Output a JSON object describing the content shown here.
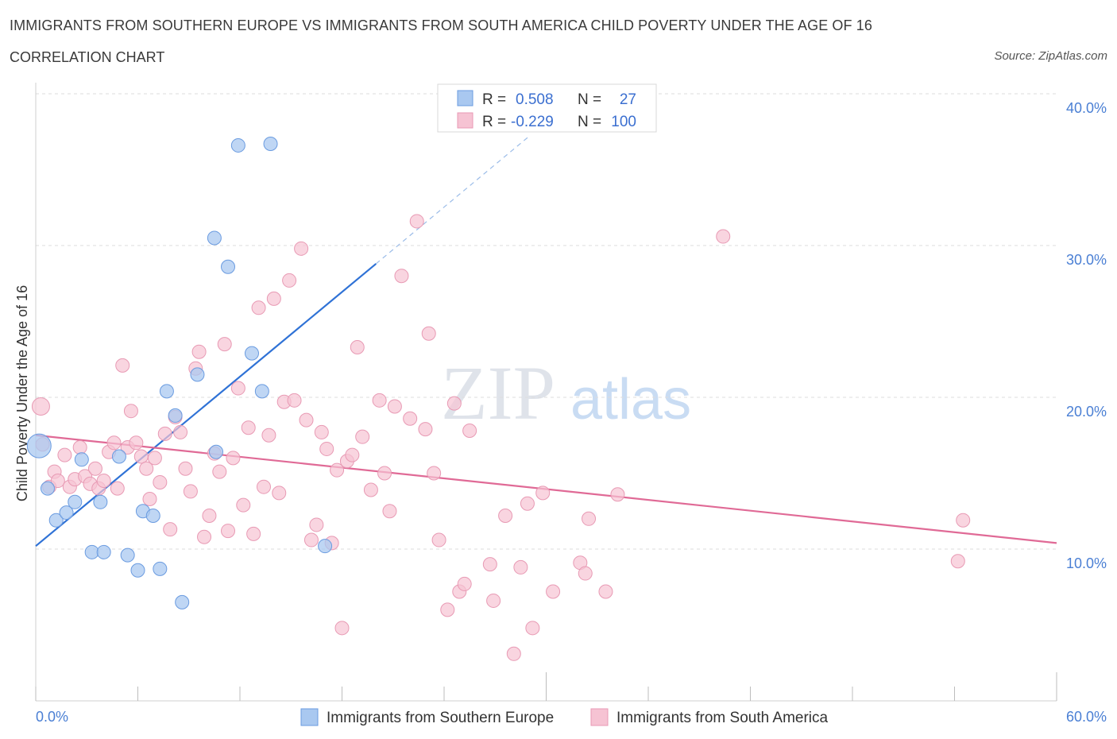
{
  "header": {
    "title": "IMMIGRANTS FROM SOUTHERN EUROPE VS IMMIGRANTS FROM SOUTH AMERICA CHILD POVERTY UNDER THE AGE OF 16",
    "subtitle": "CORRELATION CHART",
    "source": "Source: ZipAtlas.com"
  },
  "watermark": {
    "zip": "ZIP",
    "atlas": "atlas"
  },
  "colors": {
    "blue_fill": "#a9c8f0",
    "blue_stroke": "#6a9be0",
    "blue_line": "#2f72d6",
    "pink_fill": "#f6c3d3",
    "pink_stroke": "#e89ab4",
    "pink_line": "#e06a96",
    "grid": "#dddddd",
    "tick_label": "#4a7fd4"
  },
  "legend": {
    "rows": [
      {
        "r_label": "R =",
        "r_value": "0.508",
        "n_label": "N =",
        "n_value": "27"
      },
      {
        "r_label": "R =",
        "r_value": "-0.229",
        "n_label": "N =",
        "n_value": "100"
      }
    ]
  },
  "chart_data": {
    "type": "scatter",
    "title": "IMMIGRANTS FROM SOUTHERN EUROPE VS IMMIGRANTS FROM SOUTH AMERICA CHILD POVERTY UNDER THE AGE OF 16",
    "xlabel": "",
    "ylabel": "Child Poverty Under the Age of 16",
    "xlim": [
      0,
      60
    ],
    "ylim": [
      0,
      40
    ],
    "y_ticks": [
      10,
      20,
      30,
      40
    ],
    "y_tick_labels": [
      "10.0%",
      "20.0%",
      "30.0%",
      "40.0%"
    ],
    "x_tick_labels": [
      "0.0%",
      "60.0%"
    ],
    "x_minor_ticks": [
      0,
      6,
      12,
      18,
      24,
      30,
      36,
      42,
      48,
      54,
      60
    ],
    "series": [
      {
        "name": "Immigrants from Southern Europe",
        "color": "blue",
        "R": 0.508,
        "N": 27,
        "trend": {
          "x0": 0,
          "y0": 10.2,
          "x1": 20,
          "y1": 28.8,
          "dash_to_x": 29,
          "dash_to_y": 37.2
        },
        "points": [
          [
            0.2,
            16.8
          ],
          [
            0.7,
            14.0
          ],
          [
            1.2,
            11.9
          ],
          [
            1.8,
            12.4
          ],
          [
            2.3,
            13.1
          ],
          [
            2.7,
            15.9
          ],
          [
            3.3,
            9.8
          ],
          [
            4.0,
            9.8
          ],
          [
            3.8,
            13.1
          ],
          [
            4.9,
            16.1
          ],
          [
            5.4,
            9.6
          ],
          [
            6.0,
            8.6
          ],
          [
            6.3,
            12.5
          ],
          [
            6.9,
            12.2
          ],
          [
            7.3,
            8.7
          ],
          [
            7.7,
            20.4
          ],
          [
            8.2,
            18.8
          ],
          [
            8.6,
            6.5
          ],
          [
            9.5,
            21.5
          ],
          [
            10.5,
            30.5
          ],
          [
            10.6,
            16.4
          ],
          [
            11.3,
            28.6
          ],
          [
            11.9,
            36.6
          ],
          [
            12.7,
            22.9
          ],
          [
            13.3,
            20.4
          ],
          [
            13.8,
            36.7
          ],
          [
            17.0,
            10.2
          ]
        ]
      },
      {
        "name": "Immigrants from South America",
        "color": "pink",
        "R": -0.229,
        "N": 100,
        "trend": {
          "x0": 0,
          "y0": 17.5,
          "x1": 60,
          "y1": 10.4
        },
        "points": [
          [
            0.3,
            19.4
          ],
          [
            0.8,
            14.1
          ],
          [
            1.1,
            15.1
          ],
          [
            1.3,
            14.5
          ],
          [
            1.7,
            16.2
          ],
          [
            2.0,
            14.1
          ],
          [
            2.3,
            14.6
          ],
          [
            2.6,
            16.7
          ],
          [
            2.9,
            14.8
          ],
          [
            3.2,
            14.3
          ],
          [
            3.5,
            15.3
          ],
          [
            3.7,
            14.0
          ],
          [
            4.0,
            14.5
          ],
          [
            4.3,
            16.4
          ],
          [
            4.6,
            17.0
          ],
          [
            4.8,
            14.0
          ],
          [
            5.1,
            22.1
          ],
          [
            5.4,
            16.7
          ],
          [
            5.6,
            19.1
          ],
          [
            5.9,
            17.0
          ],
          [
            6.2,
            16.1
          ],
          [
            6.5,
            15.3
          ],
          [
            6.7,
            13.3
          ],
          [
            7.0,
            16.0
          ],
          [
            7.3,
            14.4
          ],
          [
            7.6,
            17.6
          ],
          [
            7.9,
            11.3
          ],
          [
            8.2,
            18.7
          ],
          [
            8.5,
            17.7
          ],
          [
            8.8,
            15.3
          ],
          [
            9.1,
            13.8
          ],
          [
            9.4,
            21.9
          ],
          [
            9.6,
            23.0
          ],
          [
            9.9,
            10.8
          ],
          [
            10.2,
            12.2
          ],
          [
            10.5,
            16.3
          ],
          [
            10.8,
            15.1
          ],
          [
            11.1,
            23.5
          ],
          [
            11.3,
            11.2
          ],
          [
            11.6,
            16.0
          ],
          [
            11.9,
            20.6
          ],
          [
            12.2,
            12.9
          ],
          [
            12.5,
            18.0
          ],
          [
            12.8,
            11.0
          ],
          [
            13.1,
            25.9
          ],
          [
            13.4,
            14.1
          ],
          [
            13.7,
            17.5
          ],
          [
            14.0,
            26.5
          ],
          [
            14.3,
            13.7
          ],
          [
            14.6,
            19.7
          ],
          [
            14.9,
            27.7
          ],
          [
            15.2,
            19.8
          ],
          [
            15.6,
            29.8
          ],
          [
            15.9,
            18.5
          ],
          [
            16.2,
            10.6
          ],
          [
            16.5,
            11.6
          ],
          [
            16.8,
            17.7
          ],
          [
            17.1,
            16.6
          ],
          [
            17.4,
            10.4
          ],
          [
            17.7,
            15.2
          ],
          [
            18.0,
            4.8
          ],
          [
            18.3,
            15.8
          ],
          [
            18.6,
            16.2
          ],
          [
            18.9,
            23.3
          ],
          [
            19.2,
            17.4
          ],
          [
            19.7,
            13.9
          ],
          [
            20.2,
            19.8
          ],
          [
            20.5,
            15.0
          ],
          [
            20.8,
            12.5
          ],
          [
            21.1,
            19.4
          ],
          [
            21.5,
            28.0
          ],
          [
            22.0,
            18.6
          ],
          [
            22.4,
            31.6
          ],
          [
            22.9,
            17.9
          ],
          [
            23.1,
            24.2
          ],
          [
            23.4,
            15.0
          ],
          [
            23.7,
            10.6
          ],
          [
            24.2,
            6.0
          ],
          [
            24.6,
            19.6
          ],
          [
            24.9,
            7.2
          ],
          [
            25.2,
            7.7
          ],
          [
            25.5,
            17.8
          ],
          [
            26.7,
            9.0
          ],
          [
            26.9,
            6.6
          ],
          [
            27.6,
            12.2
          ],
          [
            28.1,
            3.1
          ],
          [
            28.5,
            8.8
          ],
          [
            28.9,
            13.0
          ],
          [
            29.2,
            4.8
          ],
          [
            29.8,
            13.7
          ],
          [
            30.4,
            7.2
          ],
          [
            32.0,
            9.1
          ],
          [
            32.3,
            8.4
          ],
          [
            32.5,
            12.0
          ],
          [
            33.5,
            7.2
          ],
          [
            34.2,
            13.6
          ],
          [
            40.4,
            30.6
          ],
          [
            54.2,
            9.2
          ],
          [
            54.5,
            11.9
          ],
          [
            0.4,
            16.9
          ]
        ]
      }
    ],
    "legend_position": "top-center"
  }
}
